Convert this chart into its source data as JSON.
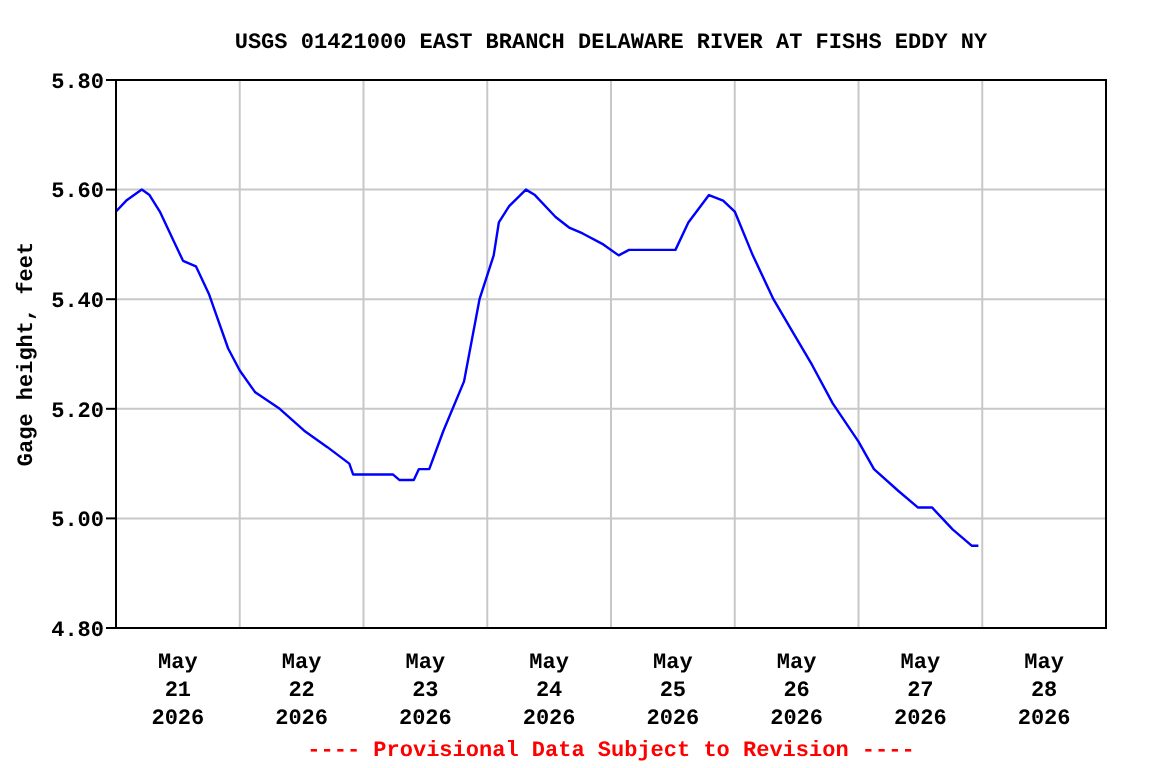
{
  "chart_data": {
    "type": "line",
    "title": "USGS 01421000 EAST BRANCH DELAWARE RIVER AT FISHS EDDY NY",
    "ylabel": "Gage height, feet",
    "annotations": [
      "---- Provisional Data Subject to Revision ----"
    ],
    "xlim": [
      "2026-05-21T00:00",
      "2026-05-29T00:00"
    ],
    "xticks": [
      {
        "value": "2026-05-21T12:00",
        "label": "May\n21\n2026"
      },
      {
        "value": "2026-05-22T00:00",
        "label": null
      },
      {
        "value": "2026-05-22T12:00",
        "label": "May\n22\n2026"
      },
      {
        "value": "2026-05-23T00:00",
        "label": null
      },
      {
        "value": "2026-05-23T12:00",
        "label": "May\n23\n2026"
      },
      {
        "value": "2026-05-24T00:00",
        "label": null
      },
      {
        "value": "2026-05-24T12:00",
        "label": "May\n24\n2026"
      },
      {
        "value": "2026-05-25T00:00",
        "label": null
      },
      {
        "value": "2026-05-25T12:00",
        "label": "May\n25\n2026"
      },
      {
        "value": "2026-05-26T00:00",
        "label": null
      },
      {
        "value": "2026-05-26T12:00",
        "label": "May\n26\n2026"
      },
      {
        "value": "2026-05-27T00:00",
        "label": null
      },
      {
        "value": "2026-05-27T12:00",
        "label": "May\n27\n2026"
      },
      {
        "value": "2026-05-28T00:00",
        "label": null
      },
      {
        "value": "2026-05-28T12:00",
        "label": "May\n28\n2026"
      }
    ],
    "ylim": [
      4.8,
      5.8
    ],
    "yticks": [
      {
        "value": 4.8,
        "label": "4.80"
      },
      {
        "value": 5.0,
        "label": "5.00"
      },
      {
        "value": 5.2,
        "label": "5.20"
      },
      {
        "value": 5.4,
        "label": "5.40"
      },
      {
        "value": 5.6,
        "label": "5.60"
      },
      {
        "value": 5.8,
        "label": "5.80"
      }
    ],
    "grid": true,
    "series": [
      {
        "color": "#0000ff",
        "x": [
          "2026-05-21T00:00",
          "2026-05-21T02:00",
          "2026-05-21T03:30",
          "2026-05-21T05:00",
          "2026-05-21T06:30",
          "2026-05-21T08:30",
          "2026-05-21T11:00",
          "2026-05-21T13:00",
          "2026-05-21T15:30",
          "2026-05-21T18:00",
          "2026-05-21T19:30",
          "2026-05-21T21:45",
          "2026-05-22T00:00",
          "2026-05-22T03:00",
          "2026-05-22T07:45",
          "2026-05-22T12:30",
          "2026-05-22T17:00",
          "2026-05-22T21:15",
          "2026-05-22T22:00",
          "2026-05-23T05:45",
          "2026-05-23T07:00",
          "2026-05-23T09:45",
          "2026-05-23T10:45",
          "2026-05-23T12:45",
          "2026-05-23T15:30",
          "2026-05-23T19:30",
          "2026-05-23T22:30",
          "2026-05-24T01:15",
          "2026-05-24T02:15",
          "2026-05-24T04:15",
          "2026-05-24T07:30",
          "2026-05-24T09:15",
          "2026-05-24T13:15",
          "2026-05-24T16:00",
          "2026-05-24T18:30",
          "2026-05-24T22:30",
          "2026-05-25T01:30",
          "2026-05-25T03:30",
          "2026-05-25T12:30",
          "2026-05-25T15:00",
          "2026-05-25T19:00",
          "2026-05-25T21:45",
          "2026-05-26T00:00",
          "2026-05-26T03:30",
          "2026-05-26T07:30",
          "2026-05-26T11:15",
          "2026-05-26T15:00",
          "2026-05-26T19:00",
          "2026-05-27T00:00",
          "2026-05-27T03:00",
          "2026-05-27T07:45",
          "2026-05-27T11:30",
          "2026-05-27T14:15",
          "2026-05-27T18:15",
          "2026-05-27T22:00",
          "2026-05-27T23:15"
        ],
        "values": [
          5.56,
          5.58,
          5.59,
          5.6,
          5.59,
          5.56,
          5.51,
          5.47,
          5.46,
          5.41,
          5.37,
          5.31,
          5.27,
          5.23,
          5.2,
          5.16,
          5.13,
          5.1,
          5.08,
          5.08,
          5.07,
          5.07,
          5.09,
          5.09,
          5.16,
          5.25,
          5.4,
          5.48,
          5.54,
          5.57,
          5.6,
          5.59,
          5.55,
          5.53,
          5.52,
          5.5,
          5.48,
          5.49,
          5.49,
          5.54,
          5.59,
          5.58,
          5.56,
          5.48,
          5.4,
          5.34,
          5.28,
          5.21,
          5.14,
          5.09,
          5.05,
          5.02,
          5.02,
          4.98,
          4.95,
          4.95
        ]
      }
    ]
  }
}
